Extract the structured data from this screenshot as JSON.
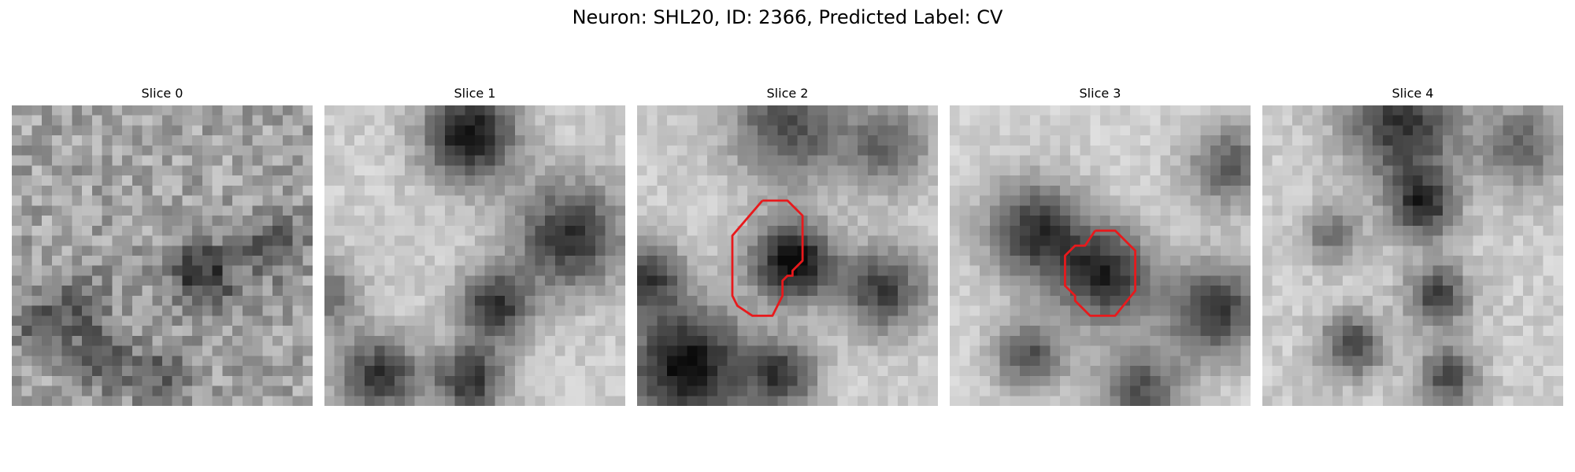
{
  "title": "Neuron: SHL20, ID: 2366, Predicted Label: CV",
  "panels": [
    {
      "title": "Slice 0"
    },
    {
      "title": "Slice 1"
    },
    {
      "title": "Slice 2"
    },
    {
      "title": "Slice 3"
    },
    {
      "title": "Slice 4"
    }
  ],
  "colors": {
    "roi_outline": "#e8191c",
    "background": "#ffffff"
  }
}
